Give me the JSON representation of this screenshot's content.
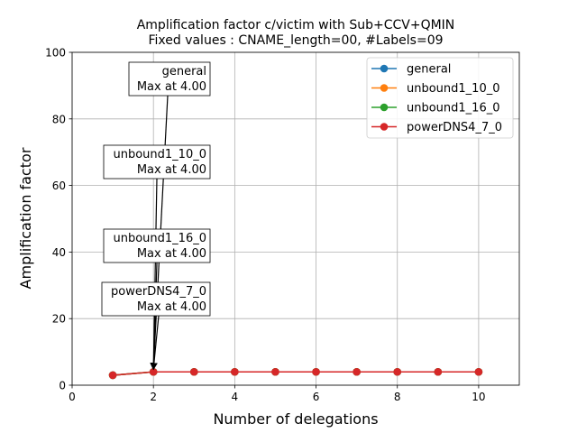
{
  "chart_data": {
    "type": "line",
    "title_line1": "Amplification factor c/victim with Sub+CCV+QMIN",
    "title_line2": "Fixed values : CNAME_length=00, #Labels=09",
    "xlabel": "Number of delegations",
    "ylabel": "Amplification factor",
    "xlim": [
      0,
      11
    ],
    "ylim": [
      0,
      100
    ],
    "xticks": [
      0,
      2,
      4,
      6,
      8,
      10
    ],
    "yticks": [
      0,
      20,
      40,
      60,
      80,
      100
    ],
    "grid": true,
    "legend_position": "top-right",
    "x": [
      1,
      2,
      3,
      4,
      5,
      6,
      7,
      8,
      9,
      10
    ],
    "series": [
      {
        "name": "general",
        "color": "#1f77b4",
        "values": [
          3,
          4,
          4,
          4,
          4,
          4,
          4,
          4,
          4,
          4
        ]
      },
      {
        "name": "unbound1_10_0",
        "color": "#ff7f0e",
        "values": [
          3,
          4,
          4,
          4,
          4,
          4,
          4,
          4,
          4,
          4
        ]
      },
      {
        "name": "unbound1_16_0",
        "color": "#2ca02c",
        "values": [
          3,
          4,
          4,
          4,
          4,
          4,
          4,
          4,
          4,
          4
        ]
      },
      {
        "name": "powerDNS4_7_0",
        "color": "#d62728",
        "values": [
          3,
          4,
          4,
          4,
          4,
          4,
          4,
          4,
          4,
          4
        ]
      }
    ],
    "annotations": [
      {
        "series": "general",
        "line1": "general",
        "line2": "Max at 4.00",
        "x": 2,
        "y": 4
      },
      {
        "series": "unbound1_10_0",
        "line1": "unbound1_10_0",
        "line2": "Max at 4.00",
        "x": 2,
        "y": 4
      },
      {
        "series": "unbound1_16_0",
        "line1": "unbound1_16_0",
        "line2": "Max at 4.00",
        "x": 2,
        "y": 4
      },
      {
        "series": "powerDNS4_7_0",
        "line1": "powerDNS4_7_0",
        "line2": "Max at 4.00",
        "x": 2,
        "y": 4
      }
    ]
  }
}
